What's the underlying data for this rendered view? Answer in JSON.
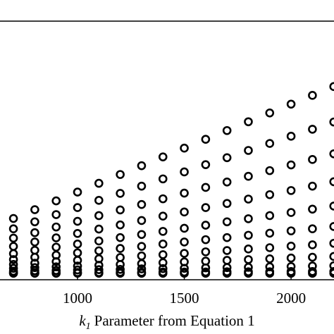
{
  "chart_data": {
    "type": "scatter",
    "x": [
      700,
      800,
      900,
      1000,
      1100,
      1200,
      1300,
      1400,
      1500,
      1600,
      1700,
      1800,
      1900,
      2000,
      2100,
      2200
    ],
    "values": [
      [
        2.5,
        2.7,
        3.3,
        4.4,
        5.9,
        7.8,
        10.1,
        12.9,
        16.1,
        19.7,
        23.7
      ],
      [
        2.5,
        2.7,
        3.5,
        4.7,
        6.4,
        8.7,
        11.4,
        14.6,
        18.2,
        22.4,
        27.1
      ],
      [
        2.5,
        2.8,
        3.6,
        5.0,
        7.0,
        9.5,
        12.6,
        16.2,
        20.4,
        25.2,
        30.5
      ],
      [
        2.5,
        2.8,
        3.8,
        5.3,
        7.5,
        10.4,
        13.8,
        17.9,
        22.6,
        27.9,
        33.9
      ],
      [
        2.5,
        2.8,
        3.9,
        5.6,
        8.1,
        11.2,
        15.0,
        19.6,
        24.8,
        30.7,
        37.3
      ],
      [
        2.5,
        2.9,
        4.0,
        5.9,
        8.6,
        12.1,
        16.3,
        21.2,
        27.0,
        33.4,
        40.7
      ],
      [
        2.5,
        2.9,
        4.2,
        6.2,
        9.2,
        12.9,
        17.5,
        22.9,
        29.1,
        36.2,
        44.1
      ],
      [
        2.5,
        3.0,
        4.3,
        6.6,
        9.7,
        13.8,
        18.7,
        24.6,
        31.3,
        39.0,
        47.5
      ],
      [
        2.5,
        3.0,
        4.4,
        6.9,
        10.2,
        14.6,
        19.9,
        26.2,
        33.5,
        41.7,
        50.9
      ],
      [
        2.5,
        3.0,
        4.6,
        7.2,
        10.8,
        15.5,
        21.1,
        27.9,
        35.7,
        44.5,
        54.3
      ],
      [
        2.5,
        3.1,
        4.7,
        7.5,
        11.3,
        16.3,
        22.4,
        29.5,
        37.8,
        47.2,
        57.7
      ],
      [
        2.5,
        3.1,
        4.8,
        7.8,
        11.9,
        17.2,
        23.6,
        31.2,
        40.0,
        50.0,
        61.1
      ],
      [
        2.5,
        3.1,
        5.0,
        8.1,
        12.4,
        18.0,
        24.8,
        32.9,
        42.2,
        52.7,
        64.5
      ],
      [
        2.5,
        3.2,
        5.1,
        8.4,
        13.0,
        18.9,
        26.0,
        34.5,
        44.4,
        55.5,
        67.9
      ],
      [
        2.5,
        3.2,
        5.3,
        8.7,
        13.5,
        19.7,
        27.3,
        36.2,
        46.5,
        58.2,
        71.3
      ],
      [
        2.5,
        3.2,
        5.4,
        9.0,
        14.1,
        20.6,
        28.5,
        37.9,
        48.7,
        61.0,
        74.7
      ]
    ],
    "color": "#000000",
    "xlim": [
      637,
      2201
    ],
    "xticks": [
      1000,
      1500,
      2000
    ],
    "ylim": [
      0,
      100
    ],
    "xlabel": {
      "var": "k",
      "sub": "1",
      "text": "Parameter from Equation 1"
    }
  }
}
